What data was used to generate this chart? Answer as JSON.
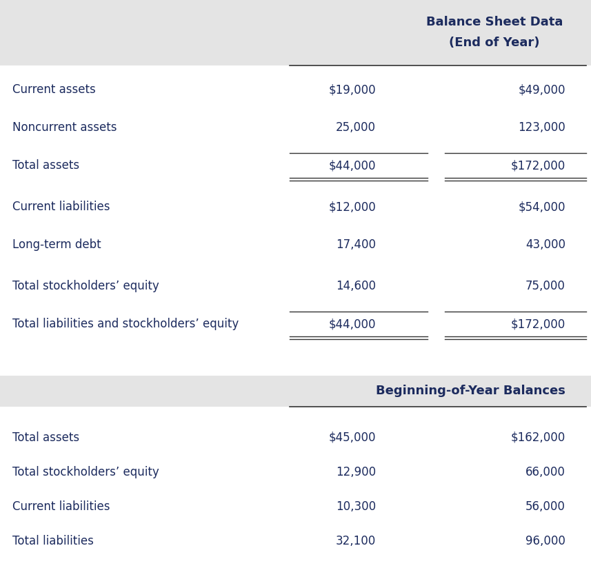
{
  "header1_line1": "Balance Sheet Data",
  "header1_line2": "(End of Year)",
  "header2": "Beginning-of-Year Balances",
  "section1_rows": [
    {
      "label": "Current assets",
      "col1": "$19,000",
      "col2": "$49,000",
      "bold_col1": false,
      "bold_col2": false,
      "single_above": false,
      "double_below": false
    },
    {
      "label": "Noncurrent assets",
      "col1": "25,000",
      "col2": "123,000",
      "bold_col1": false,
      "bold_col2": false,
      "single_above": false,
      "double_below": false
    },
    {
      "label": "Total assets",
      "col1": "$44,000",
      "col2": "$172,000",
      "bold_col1": false,
      "bold_col2": false,
      "single_above": true,
      "double_below": true
    },
    {
      "label": "Current liabilities",
      "col1": "$12,000",
      "col2": "$54,000",
      "bold_col1": false,
      "bold_col2": false,
      "single_above": false,
      "double_below": false
    },
    {
      "label": "Long-term debt",
      "col1": "17,400",
      "col2": "43,000",
      "bold_col1": false,
      "bold_col2": false,
      "single_above": false,
      "double_below": false
    },
    {
      "label": "Total stockholders’ equity",
      "col1": "14,600",
      "col2": "75,000",
      "bold_col1": false,
      "bold_col2": false,
      "single_above": false,
      "double_below": false
    },
    {
      "label": "Total liabilities and stockholders’ equity",
      "col1": "$44,000",
      "col2": "$172,000",
      "bold_col1": false,
      "bold_col2": false,
      "single_above": true,
      "double_below": true
    }
  ],
  "section2_rows": [
    {
      "label": "Total assets",
      "col1": "$45,000",
      "col2": "$162,000",
      "bold_col1": false,
      "bold_col2": false
    },
    {
      "label": "Total stockholders’ equity",
      "col1": "12,900",
      "col2": "66,000",
      "bold_col1": false,
      "bold_col2": false
    },
    {
      "label": "Current liabilities",
      "col1": "10,300",
      "col2": "56,000",
      "bold_col1": false,
      "bold_col2": false
    },
    {
      "label": "Total liabilities",
      "col1": "32,100",
      "col2": "96,000",
      "bold_col1": false,
      "bold_col2": false
    }
  ],
  "bg_color_header": "#e4e4e4",
  "bg_color_white": "#ffffff",
  "text_color_dark": "#1c2b5e",
  "text_color_label": "#1c2b5e",
  "line_color": "#333333",
  "figw": 8.57,
  "figh": 8.24,
  "dpi": 100
}
